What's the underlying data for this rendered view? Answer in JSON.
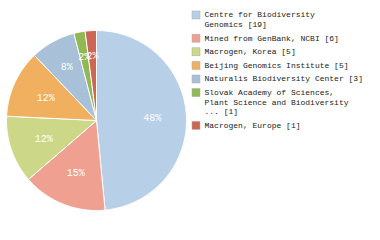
{
  "chart_data": {
    "type": "pie",
    "categories": [
      "Centre for Biodiversity\nGenomics [19]",
      "Mined from GenBank, NCBI [6]",
      "Macrogen, Korea [5]",
      "Beijing Genomics Institute [5]",
      "Naturalis Biodiversity Center [3]",
      "Slovak Academy of Sciences,\nPlant Science and Biodiversity\n... [1]",
      "Macrogen, Europe [1]"
    ],
    "values": [
      48,
      15,
      12,
      12,
      8,
      2,
      2
    ],
    "value_labels": [
      "48%",
      "15%",
      "12%",
      "12%",
      "8%",
      "2%",
      "2%"
    ],
    "colors": [
      "#b8cfe8",
      "#f0a090",
      "#ccd888",
      "#f0b060",
      "#a8c0d8",
      "#90b855",
      "#cc6655"
    ],
    "data_labels": true,
    "legend": "right"
  }
}
